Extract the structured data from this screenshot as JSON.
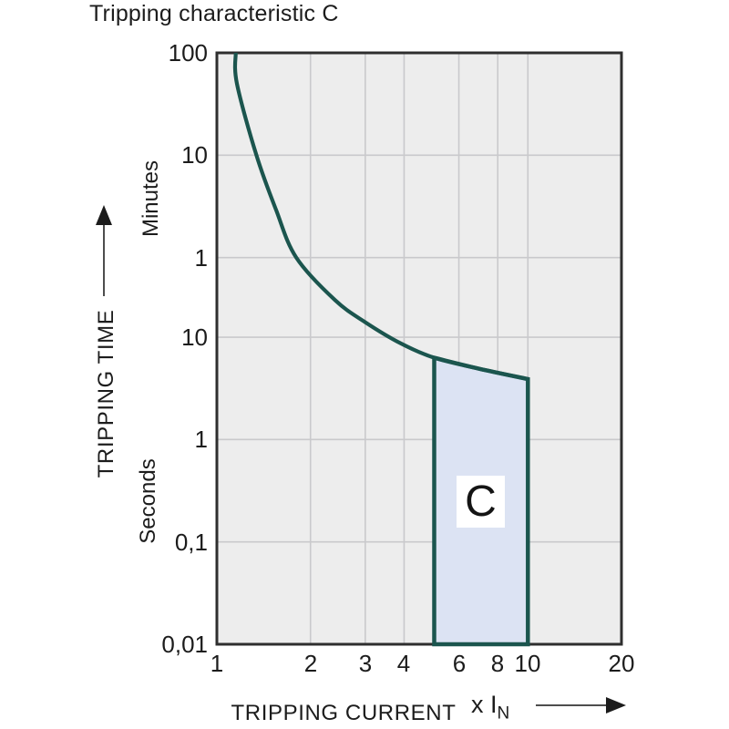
{
  "title": "Tripping characteristic C",
  "axes": {
    "y_top_unit": "Minutes",
    "y_bottom_unit": "Seconds",
    "y_axis_label": "TRIPPING TIME",
    "x_axis_label": "TRIPPING CURRENT",
    "x_axis_multiplier": "x I",
    "x_axis_multiplier_sub": "N"
  },
  "icons": {
    "y_axis_arrow": "up-arrow",
    "x_axis_arrow": "right-arrow"
  },
  "chart_data": {
    "type": "line",
    "title": "Tripping characteristic C",
    "x_scale": "log",
    "y_scale": "log",
    "xlabel": "TRIPPING CURRENT x IN",
    "ylabel": "TRIPPING TIME",
    "x_range": [
      1,
      20
    ],
    "y_range_seconds": [
      0.01,
      6000
    ],
    "x_ticks": [
      1,
      2,
      3,
      4,
      6,
      8,
      10,
      20
    ],
    "y_ticks": [
      {
        "label": "100",
        "seconds": 6000,
        "unit": "minutes"
      },
      {
        "label": "10",
        "seconds": 600,
        "unit": "minutes"
      },
      {
        "label": "1",
        "seconds": 60,
        "unit": "minutes"
      },
      {
        "label": "10",
        "seconds": 10,
        "unit": "seconds"
      },
      {
        "label": "1",
        "seconds": 1,
        "unit": "seconds"
      },
      {
        "label": "0,1",
        "seconds": 0.1,
        "unit": "seconds"
      },
      {
        "label": "0,01",
        "seconds": 0.01,
        "unit": "seconds"
      }
    ],
    "x_gridlines": [
      2,
      3,
      4,
      6,
      8,
      10
    ],
    "y_gridlines_seconds": [
      600,
      60,
      10,
      1,
      0.1
    ],
    "grid": true,
    "curve": {
      "name": "tripping-curve",
      "points_x_in_y_seconds": [
        [
          1.15,
          6000
        ],
        [
          1.16,
          3000
        ],
        [
          1.34,
          600
        ],
        [
          1.55,
          175
        ],
        [
          1.8,
          60
        ],
        [
          2.4,
          23
        ],
        [
          3.0,
          14
        ],
        [
          3.9,
          8.7
        ],
        [
          5.0,
          6.3
        ],
        [
          7.0,
          4.9
        ],
        [
          10.0,
          3.9
        ]
      ]
    },
    "region": {
      "label": "C",
      "x_from": 5,
      "x_to": 10,
      "bottom_seconds": 0.01,
      "top_follows_curve": true
    },
    "colors": {
      "curve": "#1b554e",
      "region_fill": "#dce3f3",
      "region_border": "#1b554e",
      "plot_bg": "#ededed",
      "grid": "#c9c9cc",
      "border": "#2e2e2e",
      "text": "#1c1c1c"
    }
  }
}
